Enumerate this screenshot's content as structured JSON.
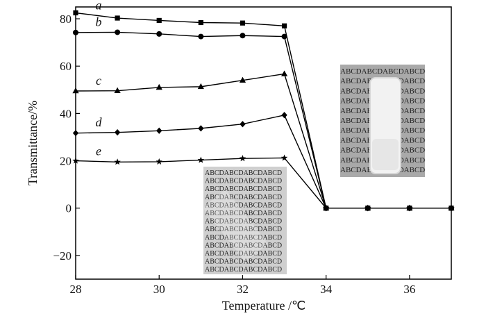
{
  "chart_data": {
    "type": "line",
    "xlabel": "Temperature /℃",
    "ylabel": "Transmittance/%",
    "xlim": [
      28,
      37
    ],
    "ylim": [
      -30,
      85
    ],
    "xticks": [
      28,
      30,
      32,
      34,
      36
    ],
    "yticks": [
      -20,
      0,
      20,
      40,
      60,
      80
    ],
    "grid": false,
    "series": [
      {
        "name": "a",
        "marker": "square",
        "points": [
          [
            28,
            82.5
          ],
          [
            29,
            80.3
          ],
          [
            30,
            79.3
          ],
          [
            31,
            78.4
          ],
          [
            32,
            78.2
          ],
          [
            33,
            77.0
          ],
          [
            34,
            0
          ],
          [
            35,
            0
          ],
          [
            36,
            0
          ],
          [
            37,
            0
          ]
        ]
      },
      {
        "name": "b",
        "marker": "circle",
        "points": [
          [
            28,
            74.2
          ],
          [
            29,
            74.3
          ],
          [
            30,
            73.6
          ],
          [
            31,
            72.5
          ],
          [
            32,
            72.9
          ],
          [
            33,
            72.5
          ],
          [
            34,
            0
          ],
          [
            35,
            0
          ],
          [
            36,
            0
          ],
          [
            37,
            0
          ]
        ]
      },
      {
        "name": "c",
        "marker": "triangle",
        "points": [
          [
            28,
            49.5
          ],
          [
            29,
            49.6
          ],
          [
            30,
            51.0
          ],
          [
            31,
            51.3
          ],
          [
            32,
            54.0
          ],
          [
            33,
            56.7
          ],
          [
            34,
            0
          ],
          [
            35,
            0
          ],
          [
            36,
            0
          ],
          [
            37,
            0
          ]
        ]
      },
      {
        "name": "d",
        "marker": "diamond",
        "points": [
          [
            28,
            31.7
          ],
          [
            29,
            32.0
          ],
          [
            30,
            32.7
          ],
          [
            31,
            33.7
          ],
          [
            32,
            35.5
          ],
          [
            33,
            39.3
          ],
          [
            34,
            0
          ],
          [
            35,
            0
          ],
          [
            36,
            0
          ],
          [
            37,
            0
          ]
        ]
      },
      {
        "name": "e",
        "marker": "star",
        "points": [
          [
            28,
            20.0
          ],
          [
            29,
            19.5
          ],
          [
            30,
            19.6
          ],
          [
            31,
            20.3
          ],
          [
            32,
            21.0
          ],
          [
            33,
            21.2
          ],
          [
            34,
            0
          ],
          [
            35,
            0
          ],
          [
            36,
            0
          ],
          [
            37,
            0
          ]
        ]
      }
    ],
    "inset_images": [
      {
        "name": "clear-sample-photo",
        "text_row": "ABCDABCDABCDABCD"
      },
      {
        "name": "opaque-sample-photo",
        "text_row": "ABCDABCDABCDABCD"
      }
    ]
  }
}
